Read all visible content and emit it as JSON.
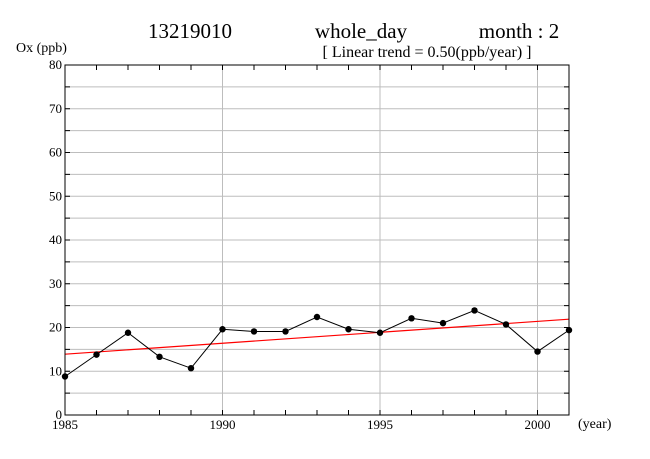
{
  "header": {
    "station": "13219010",
    "period": "whole_day",
    "month": "month : 2",
    "trend": "[ Linear trend = 0.50(ppb/year) ]"
  },
  "chart_data": {
    "type": "line",
    "title": "",
    "ylabel": "Ox (ppb)",
    "xlabel": "(year)",
    "xlim": [
      1985,
      2001
    ],
    "ylim": [
      0,
      80
    ],
    "x_ticks": [
      1985,
      1990,
      1995,
      2000
    ],
    "y_ticks": [
      0,
      10,
      20,
      30,
      40,
      50,
      60,
      70,
      80
    ],
    "grid": true,
    "series": [
      {
        "color": "#000000",
        "markers": true,
        "x": [
          1985,
          1986,
          1987,
          1988,
          1989,
          1990,
          1991,
          1992,
          1993,
          1994,
          1995,
          1996,
          1997,
          1998,
          1999,
          2000,
          2001
        ],
        "y": [
          8.8,
          13.8,
          18.8,
          13.3,
          10.7,
          19.6,
          19.1,
          19.1,
          22.4,
          19.6,
          18.8,
          22.1,
          21.0,
          23.9,
          20.7,
          14.5,
          19.4
        ]
      }
    ],
    "trend_line": {
      "color": "#ff0000",
      "x": [
        1985,
        2001
      ],
      "y": [
        13.9,
        21.9
      ]
    }
  }
}
